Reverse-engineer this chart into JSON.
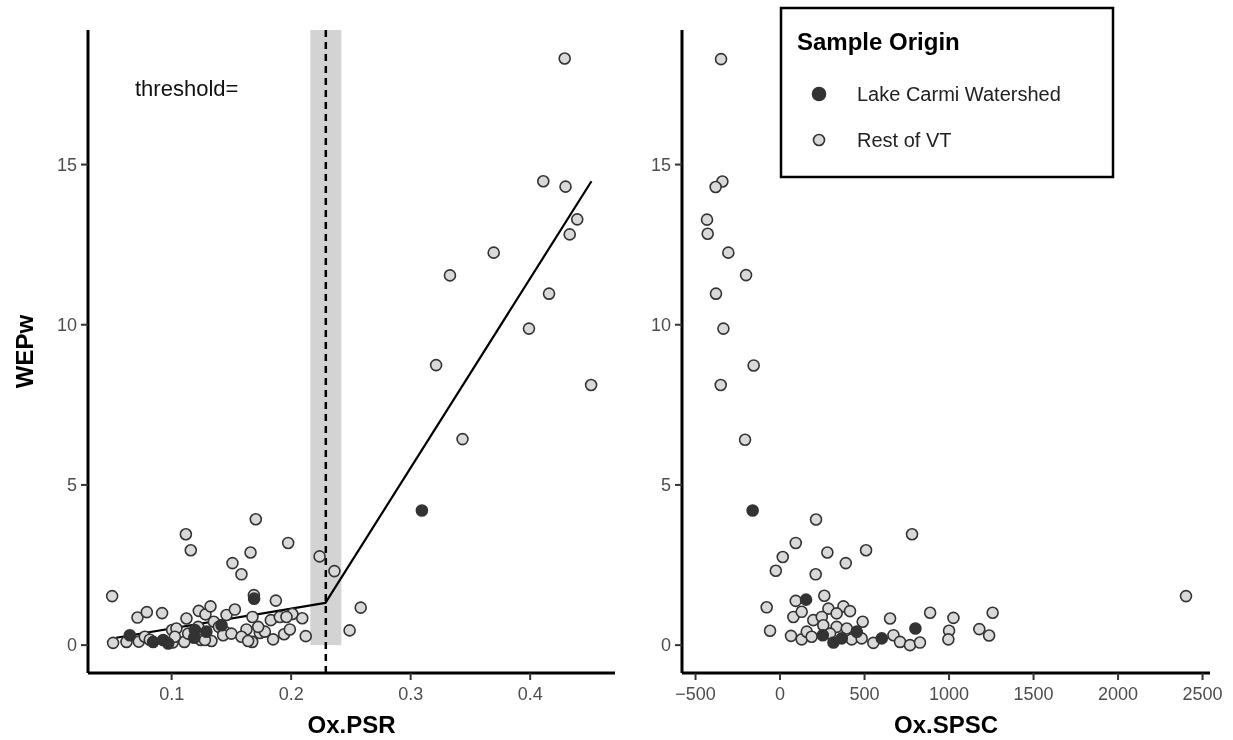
{
  "chart_data": [
    {
      "type": "scatter",
      "xlabel": "Ox.PSR",
      "ylabel": "WEPw",
      "xlim": [
        0.03,
        0.471
      ],
      "ylim": [
        -0.87,
        19.2
      ],
      "xticks": [
        0.1,
        0.2,
        0.3,
        0.4
      ],
      "yticks": [
        0,
        5,
        10,
        15
      ],
      "marker": "circle",
      "legend": false,
      "annotations": [
        "threshold="
      ],
      "ref_lines": [
        {
          "axis": "x",
          "value": 0.229,
          "line_style": "dashed",
          "color": "#000000"
        }
      ],
      "bands": [
        {
          "axis": "x",
          "from": 0.216,
          "to": 0.242,
          "color": "#d3d3d3"
        }
      ],
      "series": [
        {
          "color": "#333333",
          "x": [
            0.065,
            0.0845,
            0.0929,
            0.0971,
            0.1188,
            0.1194,
            0.1291,
            0.1417,
            0.169,
            0.3094
          ],
          "values": [
            0.31,
            0.1,
            0.16,
            0.05,
            0.23,
            0.47,
            0.42,
            0.62,
            1.45,
            4.2
          ]
        },
        {
          "color": "#d9d9d9",
          "x": [
            0.4289,
            0.411,
            0.4296,
            0.4394,
            0.4331,
            0.3695,
            0.3329,
            0.4158,
            0.399,
            0.3213,
            0.451,
            0.3434,
            0.2238,
            0.2362,
            0.2582,
            0.2489,
            0.2122,
            0.2093,
            0.201,
            0.0502,
            0.1119,
            0.116,
            0.1704,
            0.166,
            0.1509,
            0.1584,
            0.1975,
            0.051,
            0.0622,
            0.0714,
            0.0792,
            0.092,
            0.0725,
            0.0775,
            0.0817,
            0.1004,
            0.104,
            0.1008,
            0.1124,
            0.1106,
            0.1227,
            0.1283,
            0.1325,
            0.1353,
            0.1222,
            0.1244,
            0.1333,
            0.1395,
            0.1445,
            0.1459,
            0.1529,
            0.1431,
            0.1626,
            0.1674,
            0.1676,
            0.1738,
            0.183,
            0.1849,
            0.178,
            0.1905,
            0.1941,
            0.1961,
            0.1989,
            0.1872,
            0.1688,
            0.1027,
            0.1138,
            0.1278,
            0.15,
            0.1584,
            0.164,
            0.1724
          ],
          "values": [
            18.31,
            14.48,
            14.31,
            13.29,
            12.82,
            12.25,
            11.54,
            10.97,
            9.88,
            8.74,
            8.12,
            6.43,
            2.77,
            2.31,
            1.17,
            0.46,
            0.28,
            0.84,
            0.97,
            1.53,
            3.46,
            2.96,
            3.93,
            2.89,
            2.56,
            2.21,
            3.19,
            0.07,
            0.1,
            0.86,
            1.03,
            1.0,
            0.11,
            0.26,
            0.17,
            0.47,
            0.52,
            0.08,
            0.83,
            0.1,
            1.07,
            0.96,
            1.21,
            0.73,
            0.57,
            0.16,
            0.13,
            0.57,
            0.42,
            0.94,
            1.11,
            0.31,
            0.49,
            0.1,
            0.88,
            0.38,
            0.78,
            0.18,
            0.42,
            0.88,
            0.34,
            0.88,
            0.49,
            1.39,
            1.56,
            0.26,
            0.36,
            0.16,
            0.36,
            0.26,
            0.13,
            0.57
          ]
        },
        {
          "type": "line",
          "marker": "none",
          "color": "#000000",
          "x": [
            0.0536,
            0.2287,
            0.4513
          ],
          "values": [
            0.23,
            1.32,
            14.48
          ]
        }
      ]
    },
    {
      "type": "scatter",
      "xlabel": "Ox.SPSC",
      "xlim": [
        -580,
        2544
      ],
      "ylim": [
        -0.87,
        19.2
      ],
      "xticks": [
        -500,
        0,
        500,
        1000,
        1500,
        2000,
        2500
      ],
      "yticks": [
        0,
        5,
        10,
        15
      ],
      "marker": "circle",
      "legend": "top right",
      "legend_title": "Sample Origin",
      "series": [
        {
          "name": "Lake Carmi Watershed",
          "color": "#333333",
          "x": [
            -162,
            154,
            801,
            253,
            316,
            365,
            454,
            602
          ],
          "values": [
            4.2,
            1.42,
            0.52,
            0.31,
            0.08,
            0.21,
            0.42,
            0.21
          ]
        },
        {
          "name": "Rest of VT",
          "color": "#d9d9d9",
          "x": [
            -349,
            -341,
            -381,
            -432,
            -428,
            -306,
            -201,
            -379,
            -335,
            -156,
            -351,
            -207,
            213,
            781,
            93,
            280,
            509,
            16,
            389,
            -25,
            211,
            262,
            93,
            -79,
            -59,
            888,
            1026,
            1000,
            996,
            651,
            489,
            375,
            414,
            286,
            335,
            79,
            128,
            197,
            247,
            256,
            335,
            395,
            65,
            128,
            158,
            424,
            483,
            552,
            671,
            710,
            769,
            828,
            187,
            296,
            2402,
            1258,
            1179,
            1237
          ],
          "values": [
            18.29,
            14.47,
            14.3,
            13.28,
            12.84,
            12.25,
            11.55,
            10.97,
            9.88,
            8.73,
            8.12,
            6.41,
            3.92,
            3.46,
            3.19,
            2.89,
            2.96,
            2.75,
            2.56,
            2.32,
            2.21,
            1.54,
            1.38,
            1.18,
            0.45,
            1.01,
            0.85,
            0.45,
            0.18,
            0.83,
            0.73,
            1.21,
            1.06,
            1.14,
            0.99,
            0.88,
            1.04,
            0.78,
            0.88,
            0.62,
            0.57,
            0.52,
            0.29,
            0.18,
            0.42,
            0.18,
            0.21,
            0.07,
            0.31,
            0.1,
            0.0,
            0.08,
            0.26,
            0.36,
            1.53,
            1.01,
            0.5,
            0.3
          ]
        }
      ]
    }
  ]
}
